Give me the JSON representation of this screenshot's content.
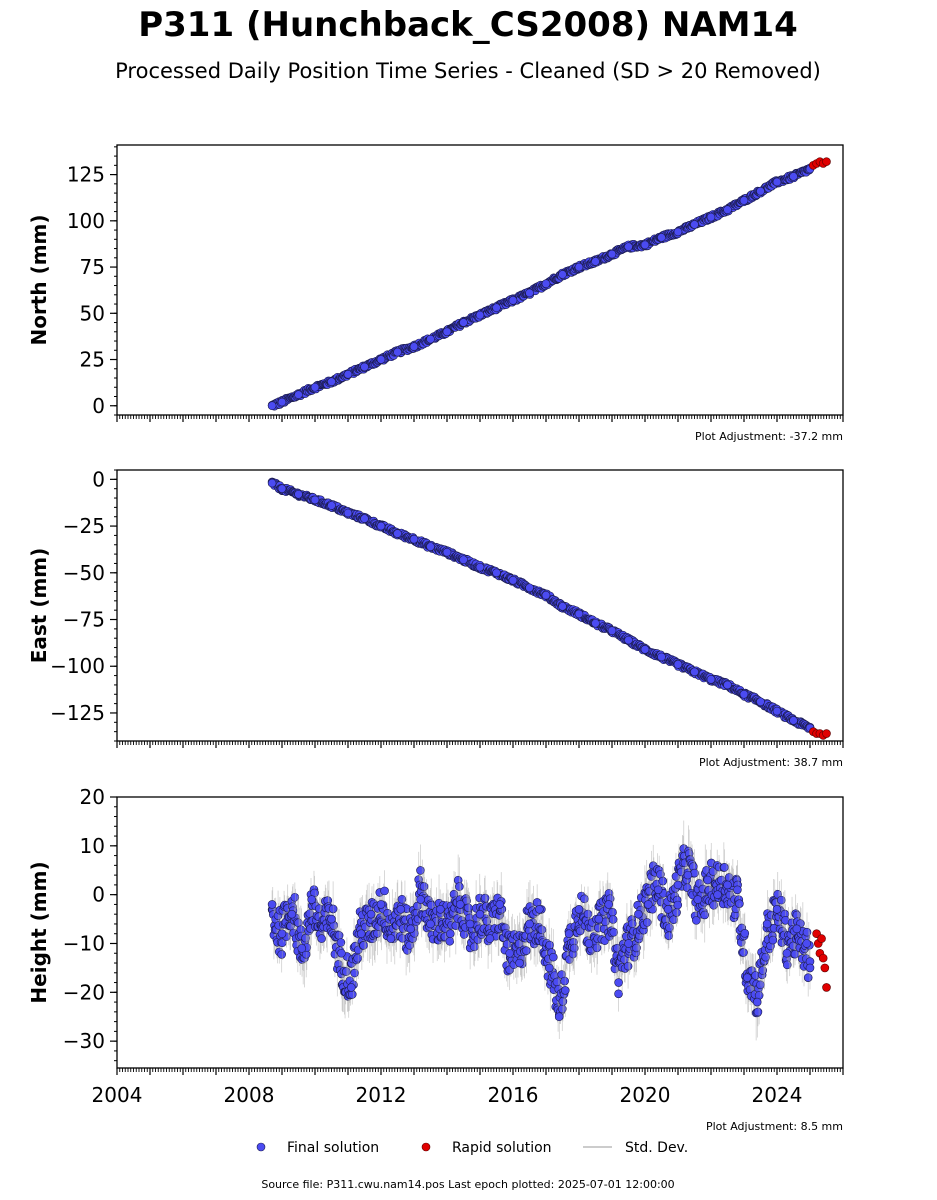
{
  "title": "P311 (Hunchback_CS2008) NAM14",
  "subtitle": "Processed Daily Position Time Series - Cleaned (SD > 20 Removed)",
  "footer": "Source file: P311.cwu.nam14.pos  Last epoch plotted: 2025-07-01 12:00:00",
  "legend": {
    "final": "Final solution",
    "rapid": "Rapid solution",
    "std": "Std. Dev."
  },
  "colors": {
    "final": "#4b4bf2",
    "rapid": "#e00000",
    "std": "#a8a8a8",
    "edge": "#1a1a4a"
  },
  "chart_data": [
    {
      "type": "scatter",
      "ylabel": "North (mm)",
      "adjustment": "Plot Adjustment: -37.2 mm",
      "xlim": [
        2004.0,
        2026.0
      ],
      "ylim": [
        -5,
        141
      ],
      "yticks": [
        0,
        25,
        50,
        75,
        100,
        125
      ],
      "final": {
        "x": [
          2008.7,
          2009.0,
          2009.5,
          2010.0,
          2010.5,
          2011.0,
          2011.5,
          2012.0,
          2012.5,
          2013.0,
          2013.5,
          2014.0,
          2014.5,
          2015.0,
          2015.5,
          2016.0,
          2016.5,
          2017.0,
          2017.5,
          2018.0,
          2018.5,
          2019.0,
          2019.5,
          2020.0,
          2020.5,
          2021.0,
          2021.5,
          2022.0,
          2022.5,
          2023.0,
          2023.5,
          2024.0,
          2024.5,
          2025.0
        ],
        "y": [
          0,
          2,
          6,
          10,
          13,
          17,
          21,
          25,
          29,
          32,
          36,
          40,
          45,
          49,
          53,
          57,
          61,
          66,
          71,
          75,
          78,
          82,
          86,
          87,
          91,
          94,
          98,
          102,
          106,
          111,
          116,
          121,
          124,
          128
        ]
      },
      "rapid": {
        "x": [
          2025.1,
          2025.2,
          2025.3,
          2025.4,
          2025.5
        ],
        "y": [
          130,
          131,
          132,
          131,
          132
        ]
      }
    },
    {
      "type": "scatter",
      "ylabel": "East (mm)",
      "adjustment": "Plot Adjustment: 38.7 mm",
      "xlim": [
        2004.0,
        2026.0
      ],
      "ylim": [
        -140,
        5
      ],
      "yticks": [
        0,
        -25,
        -50,
        -75,
        -100,
        -125
      ],
      "final": {
        "x": [
          2008.7,
          2009.0,
          2009.5,
          2010.0,
          2010.5,
          2011.0,
          2011.5,
          2012.0,
          2012.5,
          2013.0,
          2013.5,
          2014.0,
          2014.5,
          2015.0,
          2015.5,
          2016.0,
          2016.5,
          2017.0,
          2017.5,
          2018.0,
          2018.5,
          2019.0,
          2019.5,
          2020.0,
          2020.5,
          2021.0,
          2021.5,
          2022.0,
          2022.5,
          2023.0,
          2023.5,
          2024.0,
          2024.5,
          2025.0
        ],
        "y": [
          -2,
          -5,
          -8,
          -11,
          -14,
          -18,
          -21,
          -25,
          -29,
          -32,
          -36,
          -39,
          -43,
          -47,
          -50,
          -54,
          -58,
          -62,
          -68,
          -72,
          -77,
          -81,
          -86,
          -91,
          -95,
          -99,
          -103,
          -107,
          -110,
          -115,
          -119,
          -124,
          -129,
          -133
        ]
      },
      "rapid": {
        "x": [
          2025.1,
          2025.2,
          2025.3,
          2025.4,
          2025.5
        ],
        "y": [
          -135,
          -136,
          -136,
          -137,
          -136
        ]
      }
    },
    {
      "type": "scatter",
      "ylabel": "Height (mm)",
      "adjustment": "Plot Adjustment: 8.5 mm",
      "xlim": [
        2004.0,
        2026.0
      ],
      "ylim": [
        -35.5,
        20
      ],
      "yticks": [
        20,
        10,
        0,
        -10,
        -20,
        -30
      ],
      "xticks": [
        "2004",
        "2008",
        "2012",
        "2016",
        "2020",
        "2024"
      ],
      "final": {
        "x": [
          2008.7,
          2009.0,
          2009.3,
          2009.6,
          2009.9,
          2010.2,
          2010.5,
          2010.8,
          2011.1,
          2011.4,
          2011.7,
          2012.0,
          2012.3,
          2012.6,
          2012.9,
          2013.2,
          2013.5,
          2013.8,
          2014.1,
          2014.4,
          2014.7,
          2015.0,
          2015.3,
          2015.6,
          2015.9,
          2016.2,
          2016.5,
          2016.8,
          2017.1,
          2017.4,
          2017.7,
          2018.0,
          2018.3,
          2018.6,
          2018.9,
          2019.2,
          2019.5,
          2019.8,
          2020.1,
          2020.4,
          2020.7,
          2021.0,
          2021.3,
          2021.6,
          2021.9,
          2022.2,
          2022.5,
          2022.8,
          2023.1,
          2023.4,
          2023.7,
          2024.0,
          2024.3,
          2024.6,
          2024.9,
          2025.0
        ],
        "y": [
          -2,
          -8,
          -4,
          -11,
          -1,
          -9,
          -5,
          -12,
          -19,
          -8,
          -4,
          -2,
          -9,
          -3,
          -7,
          -1,
          -6,
          -3,
          -8,
          -2,
          -6,
          -4,
          -9,
          -2,
          -12,
          -14,
          -6,
          -3,
          -15,
          -25,
          -8,
          -3,
          -10,
          -5,
          -2,
          -18,
          -10,
          -4,
          -2,
          1,
          -3,
          2,
          4,
          -1,
          3,
          0,
          2,
          1,
          -17,
          -22,
          -6,
          -3,
          -12,
          -7,
          -10,
          -15
        ]
      },
      "rapid": {
        "x": [
          2025.2,
          2025.25,
          2025.3,
          2025.35,
          2025.4,
          2025.45,
          2025.5
        ],
        "y": [
          -8,
          -10,
          -12,
          -9,
          -13,
          -15,
          -19
        ]
      }
    }
  ]
}
